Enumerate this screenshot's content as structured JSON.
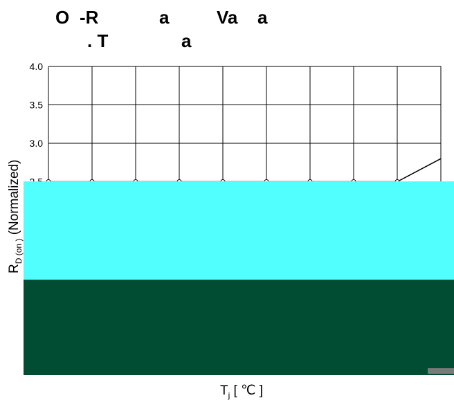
{
  "title": {
    "line1_parts": [
      "O",
      "-R",
      "a",
      "Va",
      "a"
    ],
    "line2_parts": [
      ". T",
      "a"
    ]
  },
  "chart_data": {
    "type": "line",
    "title": "O -R a Va a . T a",
    "xlabel": "Tj [ ℃ ]",
    "ylabel": "RD(on) (Normalized)",
    "yticks": [
      "4.0",
      "3.5",
      "3.0",
      "2.5"
    ],
    "ylim": [
      0,
      4.0
    ],
    "grid": true,
    "legend": "none",
    "series": [
      {
        "values": [
          2.5,
          2.5,
          2.5,
          2.5,
          2.5,
          2.5,
          2.5,
          2.5,
          2.5,
          2.8
        ]
      }
    ],
    "occluded_regions": [
      {
        "color": "#52ffff"
      },
      {
        "color": "#014d33"
      },
      {
        "color": "#7a7a7a"
      }
    ]
  },
  "xlabel": {
    "main": "T",
    "sub": "j",
    "rest": " [ ℃ ]"
  }
}
